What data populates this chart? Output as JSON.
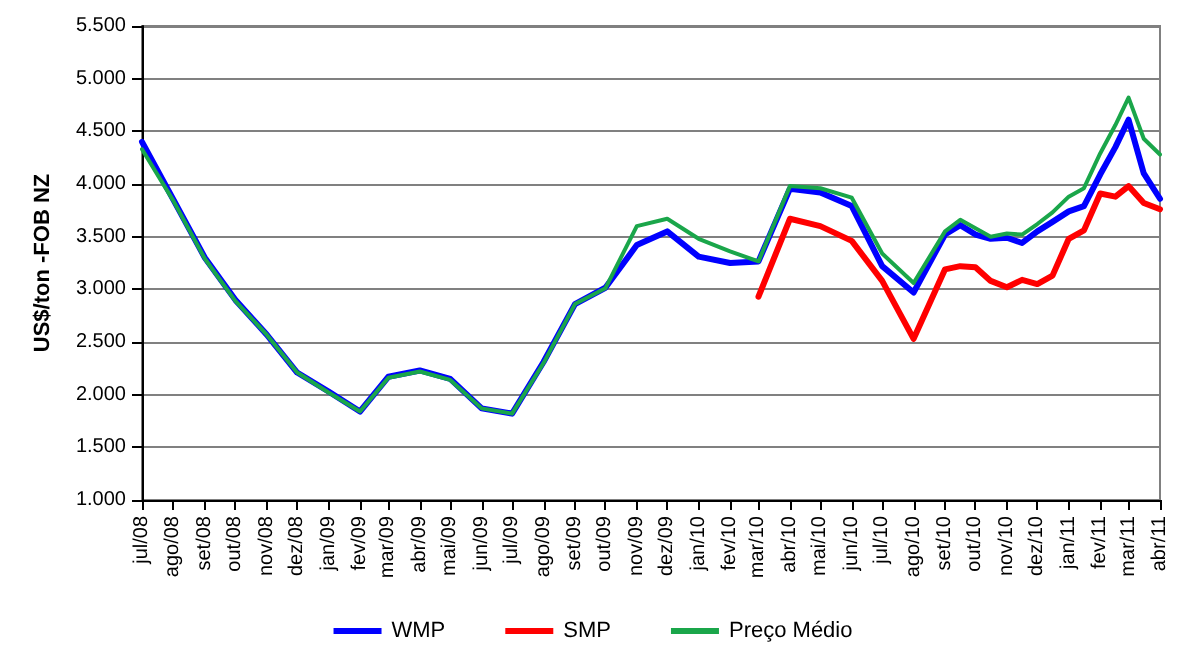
{
  "chart_data": {
    "type": "line",
    "ylabel": "US$/ton -FOB NZ",
    "x": [
      "2008-07",
      "2008-08",
      "2008-09",
      "2008-10",
      "2008-11",
      "2008-12",
      "2009-01",
      "2009-02",
      "2009-03",
      "2009-04",
      "2009-05",
      "2009-06",
      "2009-07",
      "2009-08",
      "2009-09",
      "2009-10",
      "2009-11",
      "2009-12",
      "2010-01",
      "2010-02",
      "2010-03",
      "2010-04",
      "2010-05",
      "2010-06",
      "2010-07",
      "2010-08",
      "2010-09",
      "2010-09-16",
      "2010-10",
      "2010-10-16",
      "2010-11",
      "2010-11-16",
      "2010-12",
      "2010-12-16",
      "2011-01",
      "2011-01-16",
      "2011-02",
      "2011-02-16",
      "2011-03",
      "2011-03-16",
      "2011-04"
    ],
    "series": [
      {
        "name": "WMP",
        "color": "#0000ff",
        "values": [
          4400,
          3850,
          3300,
          2900,
          2570,
          2210,
          2030,
          1840,
          2170,
          2230,
          2150,
          1870,
          1820,
          2310,
          2860,
          3015,
          3420,
          3550,
          3310,
          3250,
          3265,
          3955,
          3920,
          3790,
          3220,
          2970,
          3520,
          3610,
          3520,
          3480,
          3490,
          3440,
          3550,
          3640,
          3740,
          3790,
          4090,
          4350,
          4610,
          4100,
          3860
        ]
      },
      {
        "name": "SMP",
        "color": "#ff0000",
        "values": [
          null,
          null,
          null,
          null,
          null,
          null,
          null,
          null,
          null,
          null,
          null,
          null,
          null,
          null,
          null,
          null,
          null,
          null,
          null,
          null,
          2930,
          3670,
          3600,
          3460,
          3080,
          2530,
          3190,
          3220,
          3210,
          3080,
          3020,
          3090,
          3050,
          3130,
          3480,
          3560,
          3910,
          3880,
          3980,
          3820,
          3760
        ]
      },
      {
        "name": "Preço Médio",
        "color": "#1aa64a",
        "values": [
          4330,
          3840,
          3290,
          2890,
          2570,
          2210,
          2020,
          1840,
          2160,
          2220,
          2140,
          1870,
          1820,
          2300,
          2860,
          3010,
          3600,
          3670,
          3480,
          3360,
          3265,
          3980,
          3960,
          3870,
          3340,
          3060,
          3550,
          3660,
          3580,
          3500,
          3530,
          3520,
          3620,
          3730,
          3880,
          3960,
          4290,
          4560,
          4820,
          4430,
          4280
        ]
      }
    ],
    "xlim": [
      "2008-07",
      "2011-04"
    ],
    "xticks": [
      {
        "value": "2008-07",
        "label": "jul/08"
      },
      {
        "value": "2008-08",
        "label": "ago/08"
      },
      {
        "value": "2008-09",
        "label": "set/08"
      },
      {
        "value": "2008-10",
        "label": "out/08"
      },
      {
        "value": "2008-11",
        "label": "nov/08"
      },
      {
        "value": "2008-12",
        "label": "dez/08"
      },
      {
        "value": "2009-01",
        "label": "jan/09"
      },
      {
        "value": "2009-02",
        "label": "fev/09"
      },
      {
        "value": "2009-03",
        "label": "mar/09"
      },
      {
        "value": "2009-04",
        "label": "abr/09"
      },
      {
        "value": "2009-05",
        "label": "mai/09"
      },
      {
        "value": "2009-06",
        "label": "jun/09"
      },
      {
        "value": "2009-07",
        "label": "jul/09"
      },
      {
        "value": "2009-08",
        "label": "ago/09"
      },
      {
        "value": "2009-09",
        "label": "set/09"
      },
      {
        "value": "2009-10",
        "label": "out/09"
      },
      {
        "value": "2009-11",
        "label": "nov/09"
      },
      {
        "value": "2009-12",
        "label": "dez/09"
      },
      {
        "value": "2010-01",
        "label": "jan/10"
      },
      {
        "value": "2010-02",
        "label": "fev/10"
      },
      {
        "value": "2010-03",
        "label": "mar/10"
      },
      {
        "value": "2010-04",
        "label": "abr/10"
      },
      {
        "value": "2010-05",
        "label": "mai/10"
      },
      {
        "value": "2010-06",
        "label": "jun/10"
      },
      {
        "value": "2010-07",
        "label": "jul/10"
      },
      {
        "value": "2010-08",
        "label": "ago/10"
      },
      {
        "value": "2010-09",
        "label": "set/10"
      },
      {
        "value": "2010-10",
        "label": "out/10"
      },
      {
        "value": "2010-11",
        "label": "nov/10"
      },
      {
        "value": "2010-12",
        "label": "dez/10"
      },
      {
        "value": "2011-01",
        "label": "jan/11"
      },
      {
        "value": "2011-02",
        "label": "fev/11"
      },
      {
        "value": "2011-03",
        "label": "mar/11"
      },
      {
        "value": "2011-04",
        "label": "abr/11"
      }
    ],
    "ylim": [
      1000,
      5500
    ],
    "yticks": [
      {
        "value": 1000,
        "label": "1.000"
      },
      {
        "value": 1500,
        "label": "1.500"
      },
      {
        "value": 2000,
        "label": "2.000"
      },
      {
        "value": 2500,
        "label": "2.500"
      },
      {
        "value": 3000,
        "label": "3.000"
      },
      {
        "value": 3500,
        "label": "3.500"
      },
      {
        "value": 4000,
        "label": "4.000"
      },
      {
        "value": 4500,
        "label": "4.500"
      },
      {
        "value": 5000,
        "label": "5.000"
      },
      {
        "value": 5500,
        "label": "5.500"
      }
    ],
    "grid": "y",
    "legend": "bottom",
    "marker": "none",
    "line_style": "solid"
  }
}
